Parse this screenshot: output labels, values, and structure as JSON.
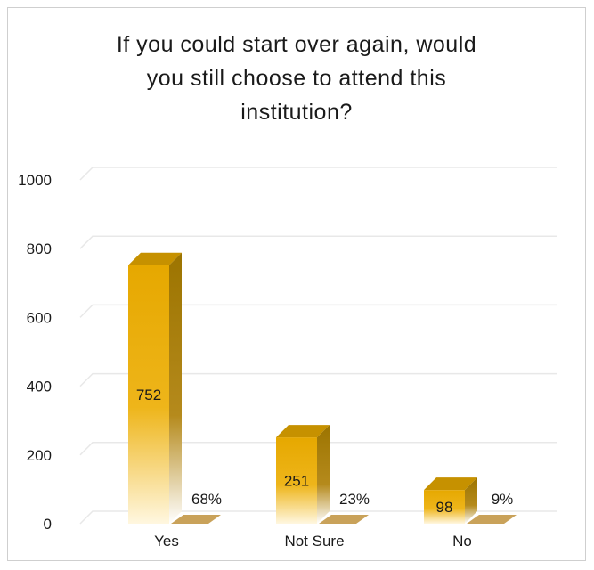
{
  "colors": {
    "bar_front": "#e6a800",
    "bar_side": "#9c7400",
    "bar_top": "#c69100",
    "pct_slab": "#c9a25a",
    "grid": "#e8e8e8"
  },
  "chart_data": {
    "type": "bar",
    "title_lines": [
      "If you could start over again, would",
      "you still choose to attend this",
      "institution?"
    ],
    "categories": [
      "Yes",
      "Not Sure",
      "No"
    ],
    "values": [
      752,
      251,
      98
    ],
    "value_labels": [
      "752",
      "251",
      "98"
    ],
    "percent_labels": [
      "68%",
      "23%",
      "9%"
    ],
    "ylim": [
      0,
      1000
    ],
    "yticks": [
      0,
      200,
      400,
      600,
      800,
      1000
    ],
    "grid": true,
    "legend": "none"
  }
}
